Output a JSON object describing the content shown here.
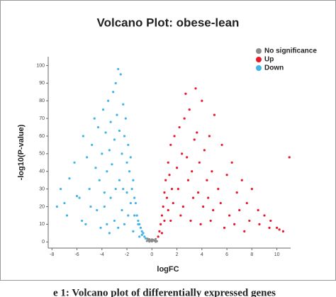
{
  "chart_data": {
    "type": "scatter",
    "title": "Volcano Plot: obese-lean",
    "xlabel": "logFC",
    "ylabel": "-log10(P-value)",
    "caption": "e 1: Volcano plot of differentially expressed genes",
    "xlim": [
      -8.3,
      11.1
    ],
    "ylim": [
      -3.5,
      105
    ],
    "xticks": [
      -8,
      -6,
      -4,
      -2,
      0,
      2,
      4,
      6,
      8,
      10
    ],
    "yticks": [
      0,
      10,
      20,
      30,
      40,
      50,
      60,
      70,
      80,
      90,
      100
    ],
    "legend": "top-right",
    "series": [
      {
        "name": "No significance",
        "color": "#8c8c8c",
        "x": [
          -0.4,
          -0.3,
          -0.2,
          -0.1,
          0,
          0.1,
          0.2,
          0.3,
          0.4,
          -0.2,
          0.1,
          0.3,
          -0.35,
          0.25,
          0
        ],
        "y": [
          0.5,
          1,
          1.5,
          0.8,
          0.3,
          1.2,
          0.7,
          1.6,
          0.4,
          0.2,
          0.9,
          0.1,
          1.8,
          0.6,
          1.4
        ]
      },
      {
        "name": "Up",
        "color": "#e8192c",
        "x": [
          0.5,
          0.6,
          0.7,
          0.8,
          0.9,
          1.0,
          1.1,
          1.2,
          1.3,
          1.4,
          1.5,
          1.6,
          1.8,
          2.0,
          2.2,
          2.4,
          2.6,
          2.8,
          3.0,
          3.2,
          3.4,
          3.6,
          3.8,
          4.0,
          4.2,
          4.4,
          4.6,
          4.8,
          5.0,
          5.3,
          5.6,
          6.0,
          6.4,
          6.8,
          7.2,
          7.6,
          8.0,
          8.5,
          9.0,
          9.5,
          10.0,
          10.5,
          0.8,
          1.0,
          1.3,
          1.7,
          2.1,
          2.5,
          2.9,
          3.3,
          3.7,
          4.1,
          4.5,
          4.9,
          5.5,
          6.2,
          7.0,
          7.8,
          8.6,
          9.4,
          10.2,
          1.5,
          2.3,
          3.1,
          3.9,
          4.7,
          5.8,
          6.6,
          7.4,
          2.7,
          3.5,
          11.0
        ],
        "y": [
          3,
          6,
          10,
          15,
          20,
          28,
          35,
          25,
          45,
          38,
          55,
          30,
          60,
          42,
          65,
          50,
          70,
          48,
          75,
          40,
          58,
          62,
          45,
          80,
          52,
          35,
          60,
          40,
          72,
          30,
          55,
          38,
          45,
          28,
          35,
          22,
          30,
          18,
          15,
          12,
          8,
          6,
          5,
          12,
          18,
          22,
          30,
          20,
          35,
          25,
          28,
          20,
          25,
          18,
          22,
          15,
          18,
          12,
          10,
          8,
          7,
          12,
          15,
          12,
          10,
          12,
          8,
          10,
          6,
          84,
          87,
          48
        ]
      },
      {
        "name": "Down",
        "color": "#42b4ea",
        "x": [
          -7.3,
          -7.0,
          -6.6,
          -6.2,
          -5.8,
          -5.5,
          -5.2,
          -5.0,
          -4.8,
          -4.6,
          -4.5,
          -4.3,
          -4.2,
          -4.0,
          -3.9,
          -3.8,
          -3.7,
          -3.6,
          -3.5,
          -3.4,
          -3.3,
          -3.2,
          -3.1,
          -3.0,
          -2.9,
          -2.8,
          -2.7,
          -2.6,
          -2.5,
          -2.4,
          -2.3,
          -2.2,
          -2.1,
          -2.0,
          -1.9,
          -1.8,
          -1.7,
          -1.6,
          -1.5,
          -1.4,
          -1.3,
          -1.2,
          -1.1,
          -1.0,
          -0.9,
          -0.8,
          -0.7,
          -0.6,
          -0.5,
          -6.8,
          -5.6,
          -4.9,
          -4.4,
          -3.8,
          -3.3,
          -2.9,
          -2.6,
          -2.3,
          -2.0,
          -1.7,
          -1.4,
          -1.1,
          -0.8,
          -3.6,
          -3.0,
          -2.4,
          -1.9,
          -4.1,
          -5.3,
          -7.6,
          -6.0,
          -3.4,
          -2.7,
          -2.2,
          -1.5,
          -1.0
        ],
        "y": [
          30,
          22,
          36,
          45,
          25,
          60,
          48,
          30,
          55,
          70,
          42,
          65,
          35,
          50,
          75,
          28,
          62,
          40,
          80,
          52,
          68,
          44,
          85,
          58,
          90,
          72,
          98,
          63,
          95,
          50,
          78,
          60,
          70,
          45,
          55,
          40,
          48,
          30,
          35,
          25,
          22,
          15,
          12,
          10,
          8,
          6,
          5,
          3,
          2,
          15,
          12,
          20,
          18,
          20,
          25,
          30,
          35,
          30,
          28,
          22,
          15,
          10,
          4,
          10,
          12,
          18,
          15,
          8,
          10,
          20,
          26,
          5,
          8,
          10,
          6,
          3
        ]
      }
    ]
  }
}
